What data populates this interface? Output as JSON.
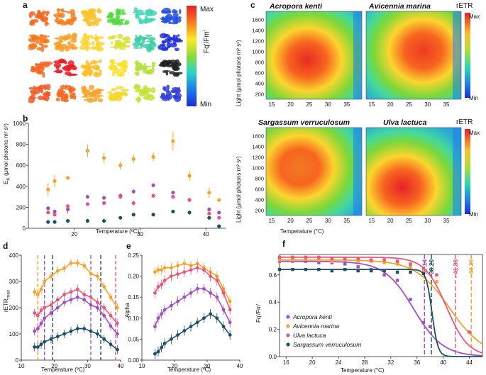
{
  "panels": {
    "a": {
      "label": "a",
      "colorbar": {
        "max": "Max",
        "min": "Min",
        "title": "Fq'/Fm'"
      }
    },
    "b": {
      "label": "b",
      "ylabel": "E",
      "ylabel_sub": "K",
      "ylabel_rest": " (µmol photons m² s¹)",
      "xlabel": "Temperature (ºC)"
    },
    "c": {
      "label": "c",
      "ylabel": "Light (µmol photons m² s¹)",
      "xlabel": "Temperature (°C)",
      "titles": [
        "Acropora kenti",
        "Avicennia marina",
        "Sargassum verruculosum",
        "Ulva lactuca"
      ],
      "colorbar": {
        "title": "rETR",
        "max": "Max",
        "min": "Min"
      }
    },
    "d": {
      "label": "d",
      "ylabel": "rETR",
      "ylabel_sub": "max",
      "xlabel": "Temperature (ºC)"
    },
    "e": {
      "label": "e",
      "ylabel": "Alpha",
      "xlabel": "Temperature (ºC)"
    },
    "f": {
      "label": "f",
      "ylabel": "Fq'/Fm'",
      "xlabel": "Temperature (°C)",
      "thresholds": [
        "37.14",
        "38.20",
        "41.88",
        "44.29"
      ],
      "legend": [
        "Acropora kenti",
        "Avicennia marina",
        "Ulva lactuca",
        "Sargassum verruculosum"
      ]
    }
  },
  "colors": {
    "acropora": "#a24fc4",
    "avicennia": "#f6a22a",
    "ulva": "#e8577a",
    "sargassum": "#1f4f66"
  },
  "chart_data": [
    {
      "type": "scatter",
      "id": "b",
      "title": "",
      "xlabel": "Temperature (ºC)",
      "ylabel": "EK (µmol photons m² s¹)",
      "xlim": [
        13,
        43
      ],
      "ylim": [
        0,
        1000
      ],
      "xticks": [
        20,
        30,
        40
      ],
      "yticks": [
        0,
        200,
        400,
        600,
        800,
        1000
      ],
      "series": [
        {
          "name": "Avicennia marina",
          "color": "#f6a22a",
          "x": [
            16,
            17,
            19,
            22,
            24.5,
            27,
            29,
            32,
            35,
            37.5,
            40.5,
            42
          ],
          "y": [
            370,
            450,
            480,
            740,
            670,
            600,
            660,
            680,
            830,
            500,
            340,
            270
          ],
          "err": [
            60,
            60,
            0,
            60,
            50,
            40,
            40,
            40,
            90,
            50,
            50,
            0
          ]
        },
        {
          "name": "Acropora kenti",
          "color": "#a24fc4",
          "x": [
            16,
            17,
            19,
            22,
            24.5,
            27,
            29,
            32,
            35,
            37.5,
            40.5,
            42
          ],
          "y": [
            190,
            160,
            180,
            300,
            290,
            310,
            350,
            410,
            340,
            270,
            180,
            150
          ],
          "err": [
            20,
            20,
            40,
            0,
            20,
            20,
            20,
            20,
            0,
            20,
            20,
            0
          ]
        },
        {
          "name": "Ulva lactuca",
          "color": "#e8577a",
          "x": [
            16,
            17,
            19,
            22,
            24.5,
            27,
            29,
            32,
            35,
            37.5,
            40.5,
            42
          ],
          "y": [
            150,
            130,
            210,
            230,
            240,
            300,
            240,
            310,
            300,
            270,
            140,
            100
          ],
          "err": [
            0,
            0,
            20,
            0,
            20,
            20,
            20,
            20,
            0,
            20,
            0,
            0
          ]
        },
        {
          "name": "Sargassum verruculosum",
          "color": "#1f4f66",
          "x": [
            16,
            17,
            19,
            22,
            24.5,
            27,
            29,
            32,
            35,
            37.5,
            40.5,
            42
          ],
          "y": [
            60,
            60,
            70,
            70,
            70,
            100,
            130,
            130,
            160,
            150,
            100,
            20
          ],
          "err": [
            0,
            0,
            0,
            0,
            0,
            0,
            0,
            0,
            0,
            20,
            0,
            0
          ]
        }
      ]
    },
    {
      "type": "scatter",
      "id": "d",
      "title": "",
      "xlabel": "Temperature (ºC)",
      "ylabel": "rETRmax",
      "xlim": [
        10,
        40
      ],
      "ylim": [
        0,
        400
      ],
      "xticks": [
        10,
        20,
        30,
        40
      ],
      "yticks": [
        0,
        100,
        200,
        300,
        400
      ],
      "vlines": [
        {
          "x": 15,
          "color": "#f6a22a"
        },
        {
          "x": 17,
          "color": "#a24fc4"
        },
        {
          "x": 19.5,
          "color": "#1f4f66"
        },
        {
          "x": 31,
          "color": "#a24fc4"
        },
        {
          "x": 34,
          "color": "#1f4f66"
        },
        {
          "x": 38.5,
          "color": "#e8577a"
        }
      ],
      "series": [
        {
          "name": "Avicennia marina",
          "color": "#f6a22a",
          "x": [
            14,
            15,
            16,
            17,
            19,
            21,
            23,
            25,
            27,
            29,
            31,
            33,
            35,
            37,
            39
          ],
          "y": [
            260,
            250,
            270,
            300,
            320,
            340,
            350,
            370,
            370,
            360,
            330,
            320,
            280,
            240,
            200
          ]
        },
        {
          "name": "Ulva lactuca",
          "color": "#e8577a",
          "x": [
            14,
            15,
            16,
            17,
            19,
            21,
            23,
            25,
            27,
            29,
            31,
            33,
            35,
            37,
            39
          ],
          "y": [
            180,
            170,
            190,
            200,
            210,
            230,
            250,
            260,
            270,
            250,
            240,
            220,
            200,
            170,
            140
          ]
        },
        {
          "name": "Acropora kenti",
          "color": "#a24fc4",
          "x": [
            14,
            15,
            16,
            17,
            19,
            21,
            23,
            25,
            27,
            29,
            31,
            33,
            35,
            37,
            39
          ],
          "y": [
            110,
            120,
            140,
            160,
            180,
            200,
            220,
            230,
            240,
            230,
            210,
            200,
            170,
            130,
            100
          ]
        },
        {
          "name": "Sargassum verruculosum",
          "color": "#1f4f66",
          "x": [
            14,
            15,
            16,
            17,
            19,
            21,
            23,
            25,
            27,
            29,
            31,
            33,
            35,
            37,
            39
          ],
          "y": [
            50,
            50,
            60,
            70,
            80,
            90,
            100,
            110,
            120,
            120,
            110,
            100,
            80,
            60,
            40
          ]
        }
      ]
    },
    {
      "type": "scatter",
      "id": "e",
      "title": "",
      "xlabel": "Temperature (ºC)",
      "ylabel": "Alpha",
      "xlim": [
        10,
        40
      ],
      "ylim": [
        0,
        0.25
      ],
      "xticks": [
        10,
        20,
        30,
        40
      ],
      "yticks": [
        0,
        0.05,
        0.1,
        0.15,
        0.2,
        0.25
      ],
      "series": [
        {
          "name": "Avicennia marina",
          "color": "#f6a22a",
          "x": [
            14,
            15,
            16,
            17,
            19,
            21,
            23,
            25,
            27,
            29,
            31,
            33,
            35,
            37
          ],
          "y": [
            0.21,
            0.215,
            0.215,
            0.22,
            0.22,
            0.225,
            0.23,
            0.225,
            0.23,
            0.22,
            0.21,
            0.2,
            0.17,
            0.14
          ]
        },
        {
          "name": "Ulva lactuca",
          "color": "#e8577a",
          "x": [
            14,
            15,
            16,
            17,
            19,
            21,
            23,
            25,
            27,
            29,
            31,
            33,
            35,
            37
          ],
          "y": [
            0.16,
            0.175,
            0.18,
            0.19,
            0.2,
            0.205,
            0.21,
            0.215,
            0.22,
            0.215,
            0.2,
            0.19,
            0.16,
            0.12
          ]
        },
        {
          "name": "Acropora kenti",
          "color": "#a24fc4",
          "x": [
            14,
            15,
            16,
            17,
            19,
            21,
            23,
            25,
            27,
            29,
            31,
            33,
            35,
            37
          ],
          "y": [
            0.08,
            0.1,
            0.11,
            0.12,
            0.13,
            0.14,
            0.15,
            0.16,
            0.17,
            0.17,
            0.16,
            0.15,
            0.12,
            0.09
          ]
        },
        {
          "name": "Sargassum verruculosum",
          "color": "#1f4f66",
          "x": [
            14,
            15,
            16,
            17,
            19,
            21,
            23,
            25,
            27,
            29,
            31,
            33,
            35,
            37
          ],
          "y": [
            0.015,
            0.02,
            0.03,
            0.04,
            0.05,
            0.06,
            0.07,
            0.08,
            0.09,
            0.1,
            0.11,
            0.1,
            0.08,
            0.06
          ]
        }
      ]
    },
    {
      "type": "line",
      "id": "f",
      "title": "",
      "xlabel": "Temperature (°C)",
      "ylabel": "Fq'/Fm'",
      "xlim": [
        15,
        46
      ],
      "ylim": [
        0,
        0.75
      ],
      "xticks": [
        16,
        20,
        24,
        28,
        32,
        36,
        40,
        44
      ],
      "yticks": [
        0.0,
        0.2,
        0.4,
        0.6
      ],
      "vlines": [
        {
          "x": 37.14,
          "color": "#a24fc4"
        },
        {
          "x": 38.2,
          "color": "#1f4f66"
        },
        {
          "x": 41.88,
          "color": "#e8577a"
        },
        {
          "x": 44.29,
          "color": "#f6a22a"
        }
      ],
      "series": [
        {
          "name": "Acropora kenti",
          "color": "#a24fc4",
          "top": 0.7,
          "mid": 35.5,
          "k": 0.45,
          "pts_x": [
            15,
            17,
            19,
            21,
            23,
            25,
            27,
            29,
            31,
            33,
            35,
            37,
            38
          ],
          "pts_y": [
            0.7,
            0.7,
            0.7,
            0.69,
            0.69,
            0.68,
            0.66,
            0.64,
            0.6,
            0.56,
            0.42,
            0.25,
            0.22
          ]
        },
        {
          "name": "Avicennia marina",
          "color": "#f6a22a",
          "top": 0.71,
          "mid": 41,
          "k": 0.38,
          "pts_x": [
            15,
            17,
            19,
            21,
            23,
            25,
            27,
            29,
            31,
            33,
            35,
            37,
            39
          ],
          "pts_y": [
            0.71,
            0.71,
            0.72,
            0.71,
            0.7,
            0.71,
            0.7,
            0.7,
            0.69,
            0.68,
            0.66,
            0.62,
            0.55
          ]
        },
        {
          "name": "Ulva lactuca",
          "color": "#e8577a",
          "top": 0.73,
          "mid": 40.5,
          "k": 0.6,
          "pts_x": [
            15,
            17,
            19,
            21,
            23,
            25,
            27,
            29,
            31,
            33,
            35,
            37,
            39,
            44
          ],
          "pts_y": [
            0.73,
            0.73,
            0.73,
            0.73,
            0.72,
            0.72,
            0.72,
            0.71,
            0.71,
            0.7,
            0.68,
            0.65,
            0.6,
            0.18
          ]
        },
        {
          "name": "Sargassum verruculosum",
          "color": "#1f4f66",
          "top": 0.64,
          "mid": 38.3,
          "k": 2.2,
          "pts_x": [
            15,
            17,
            19,
            21,
            23,
            25,
            27,
            29,
            31,
            33,
            35,
            37
          ],
          "pts_y": [
            0.64,
            0.64,
            0.64,
            0.64,
            0.63,
            0.64,
            0.63,
            0.63,
            0.63,
            0.62,
            0.62,
            0.61
          ]
        }
      ]
    }
  ]
}
